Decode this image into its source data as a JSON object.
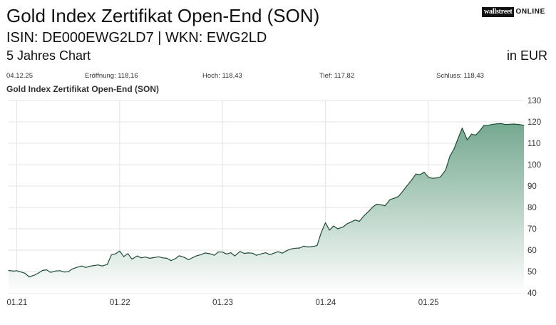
{
  "header": {
    "title": "Gold Index Zertifikat Open-End (SON)",
    "ids": "ISIN: DE000EWG2LD7  | WKN: EWG2LD",
    "subtitle": "5 Jahres Chart",
    "currency": "in EUR",
    "logo_part1": "wallstreet",
    "logo_part2": "ONLINE"
  },
  "stats": {
    "date": "04.12.25",
    "open": "Eröffnung: 118,16",
    "high": "Hoch: 118,43",
    "low": "Tief: 117,82",
    "close": "Schluss: 118,43"
  },
  "chart_data": {
    "type": "area",
    "title": "Gold Index Zertifikat Open-End (SON)",
    "xlabel": "",
    "ylabel": "",
    "ylim": [
      40,
      130
    ],
    "y_ticks": [
      130,
      120,
      110,
      100,
      90,
      80,
      70,
      60,
      50,
      40
    ],
    "x_ticks": [
      {
        "label": "01.21",
        "t": 2021.0
      },
      {
        "label": "01.22",
        "t": 2022.0
      },
      {
        "label": "01.23",
        "t": 2023.0
      },
      {
        "label": "01.24",
        "t": 2024.0
      },
      {
        "label": "01.25",
        "t": 2025.0
      }
    ],
    "xlim": [
      2020.92,
      2025.93
    ],
    "grid": true,
    "colors": {
      "line": "#1e4d36",
      "fill_top": "#6ea58a",
      "fill_bottom": "#ffffff",
      "grid": "#e3e3e3"
    },
    "x": [
      2020.92,
      2020.97,
      2021.0,
      2021.04,
      2021.08,
      2021.12,
      2021.17,
      2021.21,
      2021.25,
      2021.29,
      2021.33,
      2021.38,
      2021.42,
      2021.46,
      2021.5,
      2021.54,
      2021.58,
      2021.63,
      2021.67,
      2021.71,
      2021.75,
      2021.79,
      2021.83,
      2021.88,
      2021.92,
      2021.96,
      2022.0,
      2022.04,
      2022.08,
      2022.12,
      2022.17,
      2022.21,
      2022.25,
      2022.29,
      2022.33,
      2022.38,
      2022.42,
      2022.46,
      2022.5,
      2022.54,
      2022.58,
      2022.63,
      2022.67,
      2022.71,
      2022.75,
      2022.79,
      2022.83,
      2022.88,
      2022.92,
      2022.96,
      2023.0,
      2023.04,
      2023.08,
      2023.12,
      2023.17,
      2023.21,
      2023.25,
      2023.29,
      2023.33,
      2023.38,
      2023.42,
      2023.46,
      2023.5,
      2023.54,
      2023.58,
      2023.63,
      2023.67,
      2023.71,
      2023.75,
      2023.79,
      2023.83,
      2023.88,
      2023.92,
      2023.96,
      2024.0,
      2024.04,
      2024.08,
      2024.12,
      2024.17,
      2024.21,
      2024.25,
      2024.29,
      2024.33,
      2024.38,
      2024.42,
      2024.46,
      2024.5,
      2024.54,
      2024.58,
      2024.63,
      2024.67,
      2024.71,
      2024.75,
      2024.79,
      2024.83,
      2024.88,
      2024.92,
      2024.96,
      2025.0,
      2025.04,
      2025.08,
      2025.12,
      2025.17,
      2025.21,
      2025.25,
      2025.29,
      2025.33,
      2025.38,
      2025.42,
      2025.46,
      2025.5,
      2025.54,
      2025.58,
      2025.63,
      2025.67,
      2025.71,
      2025.75,
      2025.79,
      2025.83,
      2025.88,
      2025.93
    ],
    "y": [
      50.5,
      50.2,
      50.4,
      49.8,
      49.2,
      47.5,
      48.3,
      49.3,
      50.5,
      50.8,
      49.6,
      50.3,
      50.4,
      49.8,
      49.9,
      51.2,
      51.9,
      52.6,
      51.9,
      52.5,
      52.8,
      53.1,
      52.6,
      53.3,
      57.8,
      58.3,
      59.6,
      57.0,
      58.4,
      55.8,
      57.3,
      56.4,
      56.8,
      56.2,
      56.5,
      56.9,
      56.4,
      56.2,
      55.1,
      56.0,
      57.4,
      56.6,
      55.5,
      56.5,
      57.4,
      57.9,
      58.7,
      58.3,
      57.6,
      59.2,
      59.1,
      58.2,
      58.8,
      57.3,
      59.4,
      58.5,
      58.7,
      58.6,
      57.6,
      58.3,
      58.8,
      57.9,
      58.6,
      59.3,
      58.6,
      59.9,
      60.6,
      60.9,
      61.0,
      61.9,
      61.5,
      61.7,
      62.2,
      68.3,
      72.8,
      69.4,
      71.3,
      70.0,
      70.8,
      72.3,
      73.2,
      74.1,
      73.5,
      76.3,
      78.1,
      80.2,
      81.5,
      81.2,
      80.8,
      83.7,
      84.3,
      85.1,
      87.4,
      89.9,
      92.3,
      95.6,
      95.3,
      96.5,
      94.2,
      93.6,
      93.8,
      94.3,
      97.6,
      103.9,
      107.3,
      112.2,
      117.1,
      111.6,
      114.3,
      113.8,
      115.7,
      118.3,
      118.4,
      118.9,
      119.1,
      119.2,
      118.8,
      118.9,
      119.0,
      118.8,
      118.4
    ]
  }
}
